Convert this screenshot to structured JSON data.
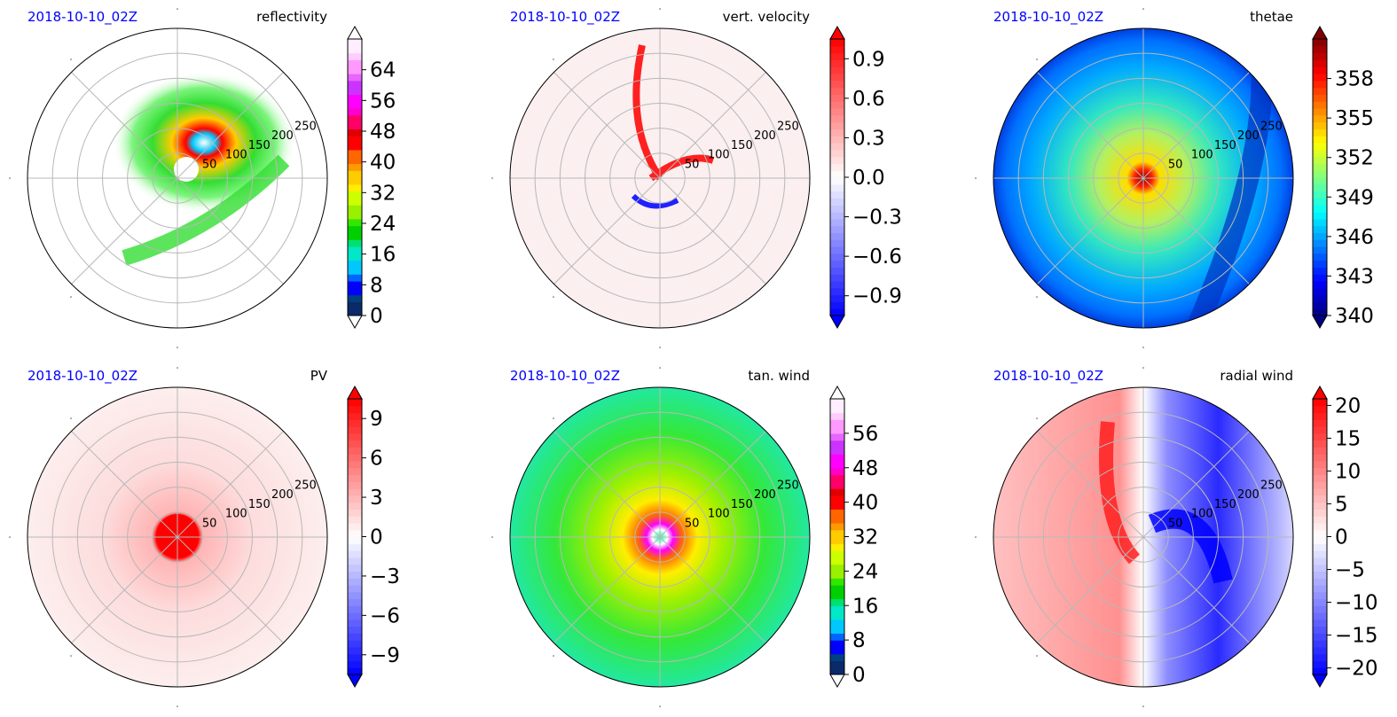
{
  "chart_data": [
    {
      "type": "heatmap",
      "projection": "polar",
      "timestamp": "2018-10-10_02Z",
      "variable": "reflectivity",
      "radial_ticks": [
        "50",
        "100",
        "150",
        "200",
        "250"
      ],
      "colorbar": {
        "min": 0,
        "max": 72,
        "extend": "both",
        "ticks": [
          0,
          8,
          16,
          24,
          32,
          40,
          48,
          56,
          64
        ],
        "tick_labels": [
          "0",
          "8",
          "16",
          "24",
          "32",
          "40",
          "48",
          "56",
          "64"
        ],
        "colormap": "radar"
      },
      "background": "#ffffff"
    },
    {
      "type": "heatmap",
      "projection": "polar",
      "timestamp": "2018-10-10_02Z",
      "variable": "vert. velocity",
      "radial_ticks": [
        "50",
        "100",
        "150",
        "200",
        "250"
      ],
      "colorbar": {
        "min": -1.05,
        "max": 1.05,
        "extend": "both",
        "ticks": [
          -0.9,
          -0.6,
          -0.3,
          0.0,
          0.3,
          0.6,
          0.9
        ],
        "tick_labels": [
          "−0.9",
          "−0.6",
          "−0.3",
          "0.0",
          "0.3",
          "0.6",
          "0.9"
        ],
        "colormap": "bwr"
      },
      "background": "#fbeff0"
    },
    {
      "type": "heatmap",
      "projection": "polar",
      "timestamp": "2018-10-10_02Z",
      "variable": "thetae",
      "radial_ticks": [
        "50",
        "100",
        "150",
        "200",
        "250"
      ],
      "colorbar": {
        "min": 340,
        "max": 361,
        "extend": "both",
        "ticks": [
          340,
          343,
          346,
          349,
          352,
          355,
          358
        ],
        "tick_labels": [
          "340",
          "343",
          "346",
          "349",
          "352",
          "355",
          "358"
        ],
        "colormap": "jet"
      },
      "background": "#00a8ff"
    },
    {
      "type": "heatmap",
      "projection": "polar",
      "timestamp": "2018-10-10_02Z",
      "variable": "PV",
      "radial_ticks": [
        "50",
        "100",
        "150",
        "200",
        "250"
      ],
      "colorbar": {
        "min": -10.5,
        "max": 10.5,
        "extend": "both",
        "ticks": [
          -9,
          -6,
          -3,
          0,
          3,
          6,
          9
        ],
        "tick_labels": [
          "−9",
          "−6",
          "−3",
          "0",
          "3",
          "6",
          "9"
        ],
        "colormap": "bwr"
      },
      "background": "#fdeeee"
    },
    {
      "type": "heatmap",
      "projection": "polar",
      "timestamp": "2018-10-10_02Z",
      "variable": "tan. wind",
      "radial_ticks": [
        "50",
        "100",
        "150",
        "200",
        "250"
      ],
      "colorbar": {
        "min": 0,
        "max": 64,
        "extend": "both",
        "ticks": [
          0,
          8,
          16,
          24,
          32,
          40,
          48,
          56
        ],
        "tick_labels": [
          "0",
          "8",
          "16",
          "24",
          "32",
          "40",
          "48",
          "56"
        ],
        "colormap": "radar"
      },
      "background": "#33e83a"
    },
    {
      "type": "heatmap",
      "projection": "polar",
      "timestamp": "2018-10-10_02Z",
      "variable": "radial wind",
      "radial_ticks": [
        "50",
        "100",
        "150",
        "200",
        "250"
      ],
      "colorbar": {
        "min": -21,
        "max": 21,
        "extend": "both",
        "ticks": [
          -20,
          -15,
          -10,
          -5,
          0,
          5,
          10,
          15,
          20
        ],
        "tick_labels": [
          "−20",
          "−15",
          "−10",
          "−5",
          "0",
          "5",
          "10",
          "15",
          "20"
        ],
        "colormap": "bwr"
      },
      "background": "#f7f7fb"
    }
  ]
}
